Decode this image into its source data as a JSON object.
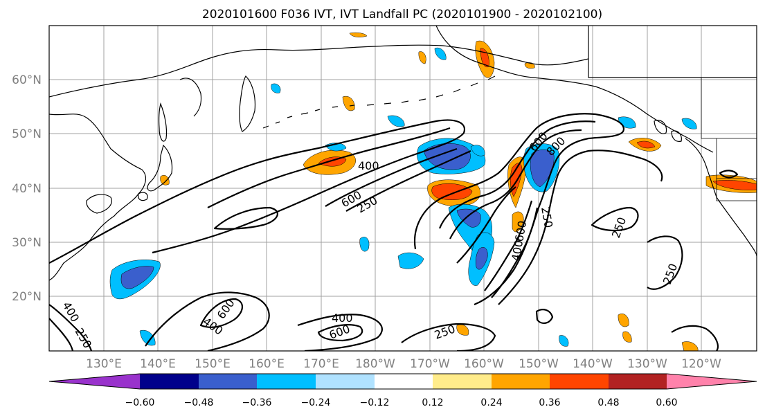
{
  "title": "2020101600 F036 IVT, IVT Landfall PC (2020101900 - 2020102100)",
  "lat_labels": [
    "60°N",
    "50°N",
    "40°N",
    "30°N",
    "20°N"
  ],
  "lon_labels": [
    "130°E",
    "140°E",
    "150°E",
    "160°E",
    "170°E",
    "180°W",
    "170°W",
    "160°W",
    "150°W",
    "140°W",
    "130°W",
    "120°W"
  ],
  "colorbar": {
    "colors": [
      "#9932cc",
      "#00008b",
      "#3a5fcd",
      "#00bfff",
      "#b0e2ff",
      "#ffffff",
      "#ffec8b",
      "#ffa500",
      "#ff4500",
      "#b22222",
      "#ff82ab"
    ],
    "tick_labels": [
      "−0.60",
      "−0.48",
      "−0.36",
      "−0.24",
      "−0.12",
      "0.12",
      "0.24",
      "0.36",
      "0.48",
      "0.60"
    ]
  },
  "contour_labels": [
    "400",
    "600",
    "250",
    "600",
    "800",
    "250",
    "250",
    "250",
    "600",
    "400",
    "400",
    "600",
    "400",
    "600",
    "250",
    "400",
    "250"
  ]
}
